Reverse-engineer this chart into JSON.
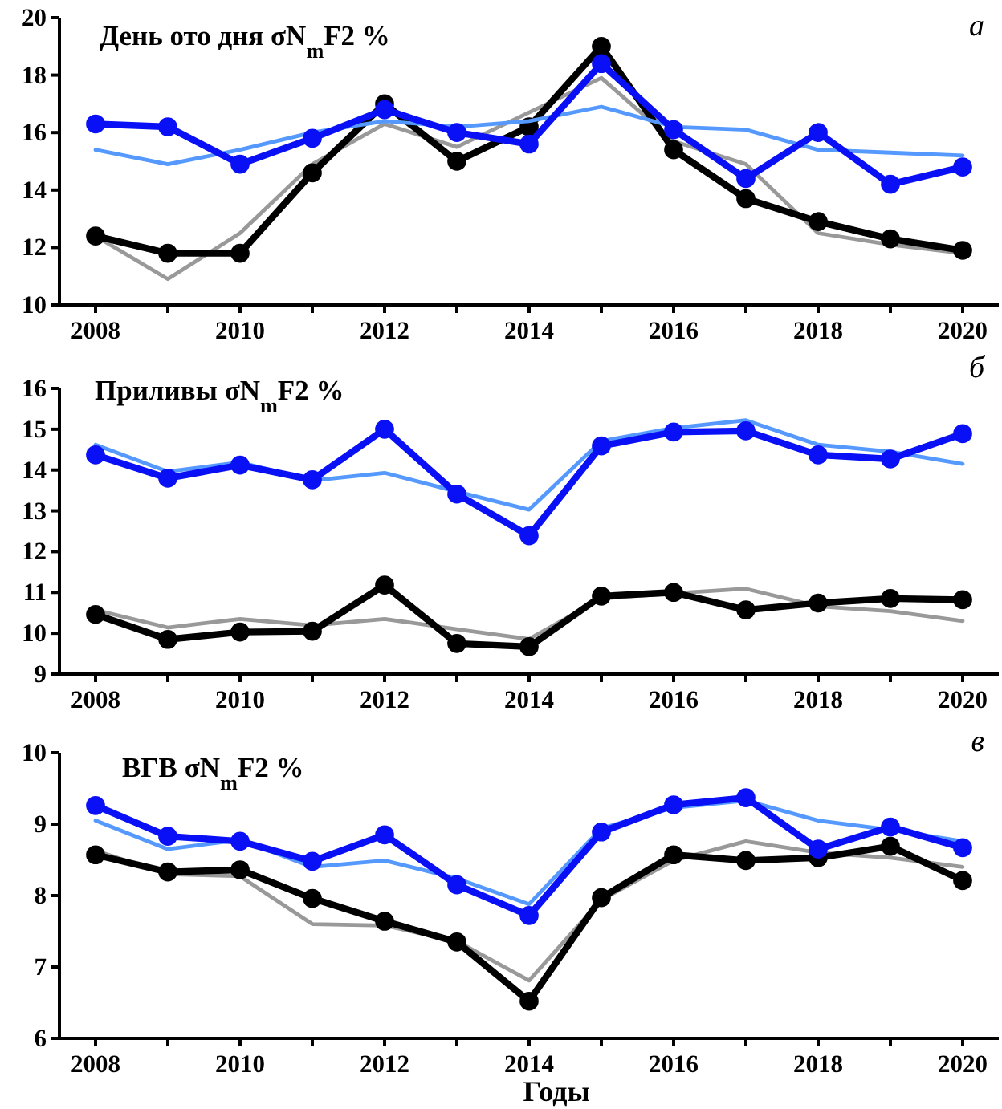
{
  "chart_data": [
    {
      "type": "line",
      "title": "День ото дня σN$_{m}$F2 %",
      "annotations": [
        "а"
      ],
      "x": [
        2008,
        2009,
        2010,
        2011,
        2012,
        2013,
        2014,
        2015,
        2016,
        2017,
        2018,
        2019,
        2020
      ],
      "xlim": [
        2007.5,
        2020.5
      ],
      "xticks": [
        2008,
        {
          "value": 2009,
          "label": null
        },
        2010,
        {
          "value": 2011,
          "label": null
        },
        2012,
        {
          "value": 2013,
          "label": null
        },
        2014,
        {
          "value": 2015,
          "label": null
        },
        2016,
        {
          "value": 2017,
          "label": null
        },
        2018,
        {
          "value": 2019,
          "label": null
        },
        2020
      ],
      "ylim": [
        10,
        20
      ],
      "yticks": [
        10,
        12,
        14,
        16,
        18,
        20
      ],
      "series": [
        {
          "color": "#999999",
          "marker": "none",
          "values": [
            12.4,
            10.9,
            12.5,
            14.9,
            16.3,
            15.5,
            16.7,
            17.9,
            15.7,
            14.9,
            12.5,
            12.1,
            11.8
          ]
        },
        {
          "color": "#000000",
          "marker": "circle",
          "values": [
            12.4,
            11.8,
            11.8,
            14.6,
            17.0,
            15.0,
            16.2,
            19.0,
            15.4,
            13.7,
            12.9,
            12.3,
            11.9
          ]
        },
        {
          "color": "#5599ff",
          "marker": "none",
          "values": [
            15.4,
            14.9,
            15.4,
            16.0,
            16.4,
            16.2,
            16.4,
            16.9,
            16.2,
            16.1,
            15.4,
            15.3,
            15.2
          ]
        },
        {
          "color": "#0a10f5",
          "marker": "circle",
          "values": [
            16.3,
            16.2,
            14.9,
            15.8,
            16.8,
            16.0,
            15.6,
            18.4,
            16.1,
            14.4,
            16.0,
            14.2,
            14.8
          ]
        }
      ]
    },
    {
      "type": "line",
      "title": "Приливы σN$_{m}$F2 %",
      "annotations": [
        "б"
      ],
      "x": [
        2008,
        2009,
        2010,
        2011,
        2012,
        2013,
        2014,
        2015,
        2016,
        2017,
        2018,
        2019,
        2020
      ],
      "xlim": [
        2007.5,
        2020.5
      ],
      "xticks": [
        2008,
        {
          "value": 2009,
          "label": null
        },
        2010,
        {
          "value": 2011,
          "label": null
        },
        2012,
        {
          "value": 2013,
          "label": null
        },
        2014,
        {
          "value": 2015,
          "label": null
        },
        2016,
        {
          "value": 2017,
          "label": null
        },
        2018,
        {
          "value": 2019,
          "label": null
        },
        2020
      ],
      "ylim": [
        9,
        16
      ],
      "yticks": [
        9,
        10,
        11,
        12,
        13,
        14,
        15,
        16
      ],
      "series": [
        {
          "color": "#999999",
          "marker": "none",
          "values": [
            10.57,
            10.14,
            10.35,
            10.19,
            10.35,
            10.1,
            9.86,
            10.85,
            10.98,
            11.09,
            10.66,
            10.54,
            10.3
          ]
        },
        {
          "color": "#000000",
          "marker": "circle",
          "values": [
            10.46,
            9.85,
            10.03,
            10.05,
            11.18,
            9.75,
            9.67,
            10.91,
            11.0,
            10.57,
            10.74,
            10.85,
            10.82
          ]
        },
        {
          "color": "#5599ff",
          "marker": "none",
          "values": [
            14.62,
            13.96,
            14.19,
            13.74,
            13.93,
            13.47,
            13.03,
            14.71,
            15.03,
            15.22,
            14.62,
            14.45,
            14.15
          ]
        },
        {
          "color": "#0a10f5",
          "marker": "circle",
          "values": [
            14.37,
            13.8,
            14.12,
            13.76,
            15.0,
            13.41,
            12.39,
            14.59,
            14.93,
            14.96,
            14.37,
            14.27,
            14.89
          ]
        }
      ]
    },
    {
      "type": "line",
      "title": "ВГВ σN$_{m}$F2 %",
      "xlabel": "Годы",
      "annotations": [
        "в"
      ],
      "x": [
        2008,
        2009,
        2010,
        2011,
        2012,
        2013,
        2014,
        2015,
        2016,
        2017,
        2018,
        2019,
        2020
      ],
      "xlim": [
        2007.5,
        2020.5
      ],
      "xticks": [
        2008,
        {
          "value": 2009,
          "label": null
        },
        2010,
        {
          "value": 2011,
          "label": null
        },
        2012,
        {
          "value": 2013,
          "label": null
        },
        2014,
        {
          "value": 2015,
          "label": null
        },
        2016,
        {
          "value": 2017,
          "label": null
        },
        2018,
        {
          "value": 2019,
          "label": null
        },
        2020
      ],
      "ylim": [
        6,
        10
      ],
      "yticks": [
        6,
        7,
        8,
        9,
        10
      ],
      "series": [
        {
          "color": "#999999",
          "marker": "none",
          "values": [
            8.63,
            8.3,
            8.27,
            7.6,
            7.58,
            7.36,
            6.81,
            7.94,
            8.49,
            8.76,
            8.6,
            8.53,
            8.4
          ]
        },
        {
          "color": "#000000",
          "marker": "circle",
          "values": [
            8.57,
            8.33,
            8.36,
            7.96,
            7.64,
            7.35,
            6.52,
            7.97,
            8.57,
            8.49,
            8.53,
            8.69,
            8.21
          ]
        },
        {
          "color": "#5599ff",
          "marker": "none",
          "values": [
            9.05,
            8.65,
            8.78,
            8.4,
            8.49,
            8.24,
            7.88,
            8.94,
            9.23,
            9.33,
            9.05,
            8.92,
            8.76
          ]
        },
        {
          "color": "#0a10f5",
          "marker": "circle",
          "values": [
            9.26,
            8.83,
            8.76,
            8.48,
            8.85,
            8.15,
            7.72,
            8.89,
            9.27,
            9.37,
            8.65,
            8.96,
            8.67
          ]
        }
      ]
    }
  ]
}
